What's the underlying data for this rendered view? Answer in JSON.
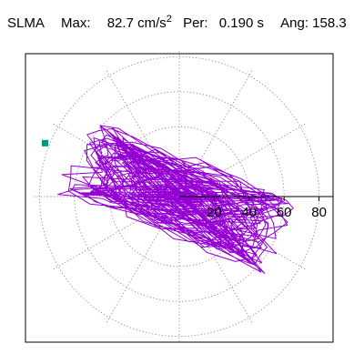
{
  "header": {
    "station": "SLMA",
    "max_label": "Max:",
    "max_value": "82.7",
    "max_unit_base": "cm/s",
    "max_unit_exp": "2",
    "per_label": "Per:",
    "per_value": "0.190 s",
    "ang_label": "Ang:",
    "ang_value": "158.3"
  },
  "chart_data": {
    "type": "polar-hodogram",
    "r_ticks": [
      20,
      40,
      60,
      80
    ],
    "r_max": 90,
    "angle_grid_step_deg": 30,
    "grid": true,
    "series": [
      {
        "color": "#9400D3"
      }
    ],
    "max_point": {
      "r": 82.7,
      "angle_deg": 158.3,
      "color": "#009977"
    }
  }
}
